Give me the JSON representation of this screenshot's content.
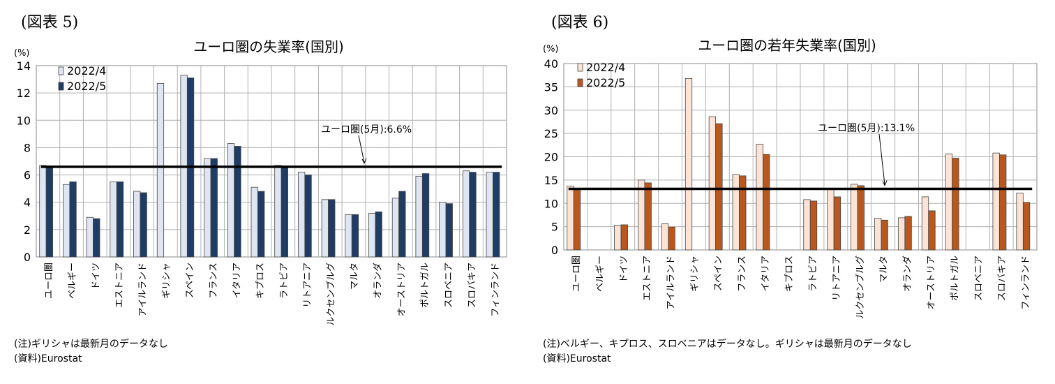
{
  "figures": [
    {
      "label": "(図表 5)",
      "notes": [
        "(注)ギリシャは最新月のデータなし",
        "(資料)Eurostat"
      ],
      "chart_data": {
        "type": "bar",
        "title": "ユーロ圏の失業率(国別)",
        "ylabel": "(%)",
        "ylim": [
          0,
          14
        ],
        "yticks": [
          "0",
          "2",
          "4",
          "6",
          "8",
          "10",
          "12",
          "14"
        ],
        "grid": true,
        "legend_position": "top-left",
        "categories": [
          "ユーロ圏",
          "ベルギー",
          "ドイツ",
          "エストニア",
          "アイルランド",
          "ギリシャ",
          "スペイン",
          "フランス",
          "イタリア",
          "キプロス",
          "ラトビア",
          "リトアニア",
          "ルクセンブルグ",
          "マルタ",
          "オランダ",
          "オーストリア",
          "ポルトガル",
          "スロベニア",
          "スロバキア",
          "フィンランド"
        ],
        "series": [
          {
            "name": "2022/4",
            "color": "#dfe6f2",
            "values": [
              6.7,
              5.3,
              2.9,
              5.5,
              4.8,
              12.7,
              13.3,
              7.2,
              8.3,
              5.1,
              6.7,
              6.2,
              4.2,
              3.1,
              3.2,
              4.3,
              5.9,
              4.0,
              6.3,
              6.2
            ]
          },
          {
            "name": "2022/5",
            "color": "#1f3c64",
            "values": [
              6.6,
              5.5,
              2.8,
              5.5,
              4.7,
              null,
              13.1,
              7.2,
              8.1,
              4.8,
              6.6,
              6.0,
              4.2,
              3.1,
              3.3,
              4.8,
              6.1,
              3.9,
              6.2,
              6.2
            ]
          }
        ],
        "reference_line": {
          "value": 6.6,
          "label": "ユーロ圏(5月):6.6%"
        }
      }
    },
    {
      "label": "(図表 6)",
      "notes": [
        "(注)ベルギー、キプロス、スロベニアはデータなし。ギリシャは最新月のデータなし",
        "(資料)Eurostat"
      ],
      "chart_data": {
        "type": "bar",
        "title": "ユーロ圏の若年失業率(国別)",
        "ylabel": "(%)",
        "ylim": [
          0,
          40
        ],
        "yticks": [
          "0",
          "5",
          "10",
          "15",
          "20",
          "25",
          "30",
          "35",
          "40"
        ],
        "grid": true,
        "legend_position": "top-left",
        "categories": [
          "ユーロ圏",
          "ベルギー",
          "ドイツ",
          "エストニア",
          "アイルランド",
          "ギリシャ",
          "スペイン",
          "フランス",
          "イタリア",
          "キプロス",
          "ラトビア",
          "リトアニア",
          "ルクセンブルグ",
          "マルタ",
          "オランダ",
          "オーストリア",
          "ポルトガル",
          "スロベニア",
          "スロバキア",
          "フィンランド"
        ],
        "series": [
          {
            "name": "2022/4",
            "color": "#fbe4d6",
            "values": [
              13.7,
              null,
              5.3,
              15.0,
              5.6,
              36.8,
              28.6,
              16.2,
              22.7,
              null,
              10.8,
              13.1,
              14.1,
              6.8,
              6.9,
              11.4,
              20.6,
              null,
              20.8,
              12.2
            ]
          },
          {
            "name": "2022/5",
            "color": "#b8581e",
            "values": [
              13.1,
              null,
              5.4,
              14.4,
              4.9,
              null,
              27.1,
              15.9,
              20.5,
              null,
              10.5,
              11.4,
              13.8,
              6.4,
              7.2,
              8.4,
              19.7,
              null,
              20.4,
              10.2
            ]
          }
        ],
        "reference_line": {
          "value": 13.1,
          "label": "ユーロ圏(5月):13.1%"
        }
      }
    }
  ]
}
